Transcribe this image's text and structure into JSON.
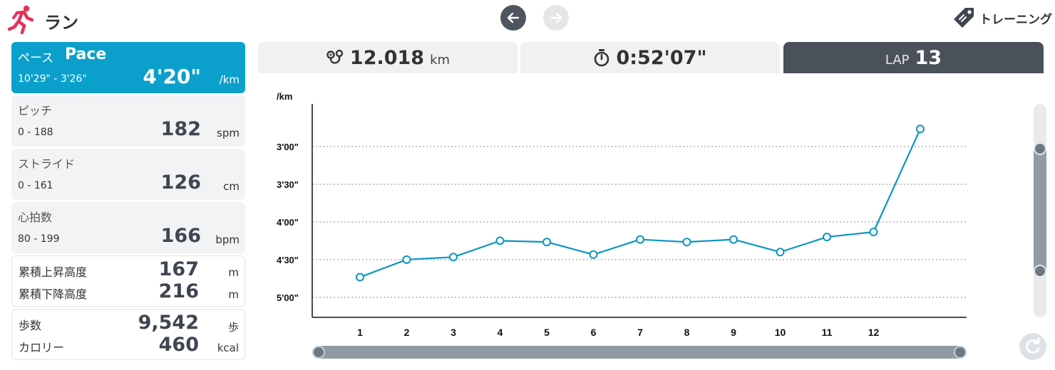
{
  "header": {
    "title": "ラン",
    "training_label": "トレーニング",
    "icons": {
      "run": "runner-icon",
      "prev": "arrow-left-icon",
      "next": "arrow-right-icon",
      "training": "tag-icon"
    },
    "colors": {
      "accent": "#0aa0cb",
      "run_icon": "#e8315a",
      "nav_active": "#4d555f",
      "nav_disabled": "#e6e6e6"
    }
  },
  "metrics": {
    "pace": {
      "label_jp": "ペース",
      "label_en": "Pace",
      "range": "10'29\" - 3'26\"",
      "value": "4'20\"",
      "unit": "/km"
    },
    "pitch": {
      "label": "ピッチ",
      "range": "0 - 188",
      "value": "182",
      "unit": "spm"
    },
    "stride": {
      "label": "ストライド",
      "range": "0 - 161",
      "value": "126",
      "unit": "cm"
    },
    "heart_rate": {
      "label": "心拍数",
      "range": "80 - 199",
      "value": "166",
      "unit": "bpm"
    },
    "elevation": {
      "ascent_label": "累積上昇高度",
      "ascent_value": "167",
      "ascent_unit": "m",
      "descent_label": "累積下降高度",
      "descent_value": "216",
      "descent_unit": "m"
    },
    "totals": {
      "steps_label": "歩数",
      "steps_value": "9,542",
      "steps_unit": "歩",
      "calories_label": "カロリー",
      "calories_value": "460",
      "calories_unit": "kcal"
    }
  },
  "tabs": {
    "distance": {
      "value": "12.018",
      "unit": "km",
      "icon": "route-icon"
    },
    "time": {
      "value": "0:52'07\"",
      "icon": "stopwatch-icon"
    },
    "lap": {
      "label": "LAP",
      "value": "13"
    }
  },
  "chart_data": {
    "type": "line",
    "ylabel": "/km",
    "y_inverted": true,
    "ylim_seconds": [
      316,
      146
    ],
    "y_ticks": [
      {
        "label": "3'00\"",
        "seconds": 180
      },
      {
        "label": "3'30\"",
        "seconds": 210
      },
      {
        "label": "4'00\"",
        "seconds": 240
      },
      {
        "label": "4'30\"",
        "seconds": 270
      },
      {
        "label": "5'00\"",
        "seconds": 300
      }
    ],
    "x_ticks": [
      "1",
      "2",
      "3",
      "4",
      "5",
      "6",
      "7",
      "8",
      "9",
      "10",
      "11",
      "12"
    ],
    "laps": [
      1,
      2,
      3,
      4,
      5,
      6,
      7,
      8,
      9,
      10,
      11,
      12,
      13
    ],
    "pace_seconds": [
      284,
      270,
      268,
      255,
      256,
      266,
      254,
      256,
      254,
      264,
      252,
      248,
      166
    ],
    "grid": "horizontal-dotted",
    "line_color": "#0c96c0"
  }
}
